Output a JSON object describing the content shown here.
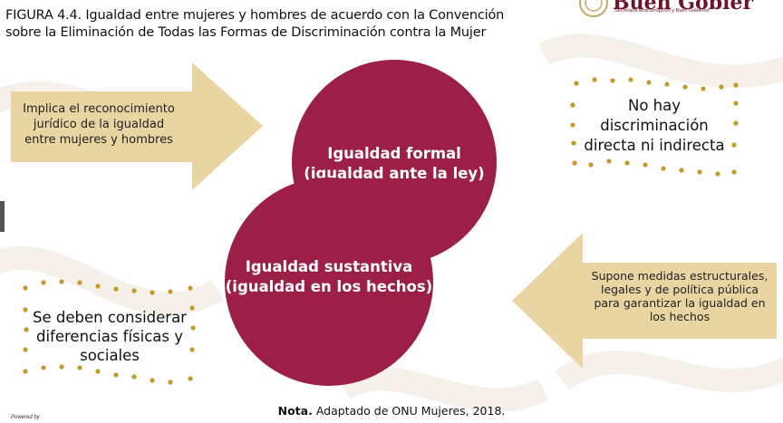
{
  "header": {
    "title_line1": "FIGURA 4.4. Igualdad entre mujeres y hombres de acuerdo con la Convención",
    "title_line2": "sobre la Eliminación de Todas las Formas de Discriminación contra la Mujer",
    "logo_word": "Buen Gobier",
    "logo_sub": "Secretaría Anticorrupción y Buen Gobierno"
  },
  "diagram": {
    "circle_formal": {
      "line1": "Igualdad formal",
      "line2": "(igualdad ante la ley)"
    },
    "circle_sustantiva": {
      "line1": "Igualdad sustantiva",
      "line2": "(igualdad en los hechos)"
    },
    "arrow_left": {
      "lines": [
        "Implica el reconocimiento",
        "jurídico de la igualdad",
        "entre mujeres y hombres"
      ]
    },
    "arrow_right": {
      "lines": [
        "Supone medidas estructurales,",
        "legales y de política pública",
        "para garantizar la igualdad en",
        "los hechos"
      ]
    },
    "dotted_top_right": {
      "lines": [
        "No hay",
        "discriminación",
        "directa ni indirecta"
      ]
    },
    "dotted_bottom_left": {
      "lines": [
        "Se deben considerar",
        "diferencias físicas y",
        "sociales"
      ]
    }
  },
  "colors": {
    "circle": "#9c1f45",
    "arrow": "#e8d3a0",
    "dots": "#c49a2a",
    "logo": "#6e1428"
  },
  "footer": {
    "note_label": "Nota.",
    "note_text": " Adaptado de ONU Mujeres, 2018.",
    "powered": "Powered by"
  }
}
